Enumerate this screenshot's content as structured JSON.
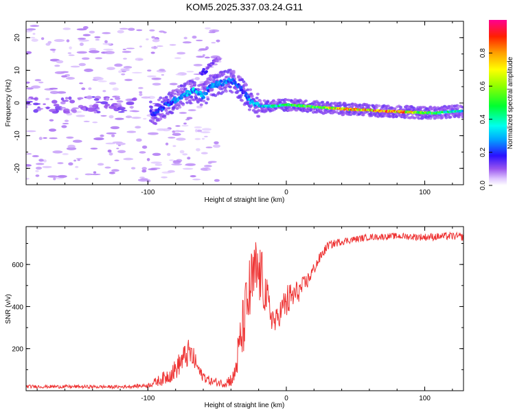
{
  "title": "KOM5.2025.337.03.24.G11",
  "chart_data": [
    {
      "type": "heatmap",
      "name": "spectrogram",
      "xlabel": "Height of straight line (km)",
      "ylabel": "Frequency (Hz)",
      "xlim": [
        -188,
        128
      ],
      "ylim": [
        -25,
        25
      ],
      "xticks": [
        -100,
        0,
        100
      ],
      "xtick_labels": [
        "-100",
        "0",
        "100"
      ],
      "yticks": [
        -20,
        -10,
        0,
        10,
        20
      ],
      "ytick_labels": [
        "-20",
        "-10",
        "0",
        "10",
        "20"
      ],
      "colorbar": {
        "label": "Normalized spectral amplitude",
        "range": [
          0,
          1
        ],
        "ticks": [
          0.0,
          0.2,
          0.4,
          0.6,
          0.8
        ],
        "tick_labels": [
          "0.0",
          "0.2",
          "0.4",
          "0.6",
          "0.8"
        ]
      },
      "ridge": {
        "x": [
          -95,
          -88,
          -80,
          -72,
          -66,
          -60,
          -55,
          -48,
          -40,
          -32,
          -25,
          -18,
          -10,
          0,
          10,
          20,
          30,
          40,
          50,
          60,
          70,
          80,
          90,
          100,
          110,
          118,
          128
        ],
        "freq": [
          -3,
          -1,
          1,
          3,
          4,
          2,
          5,
          6,
          7,
          4,
          0,
          -1,
          -1,
          -0.5,
          -0.8,
          -1.2,
          -1.5,
          -1.8,
          -2,
          -2.2,
          -2.5,
          -2.6,
          -2.8,
          -3,
          -3,
          -2.6,
          -2.5
        ],
        "amplitude": [
          0.2,
          0.25,
          0.3,
          0.32,
          0.35,
          0.33,
          0.3,
          0.28,
          0.3,
          0.2,
          0.35,
          0.4,
          0.45,
          0.5,
          0.55,
          0.6,
          0.75,
          0.8,
          0.85,
          0.9,
          0.95,
          0.9,
          0.8,
          0.6,
          0.5,
          0.45,
          0.4
        ]
      },
      "upper_branch": {
        "x": [
          -62,
          -58,
          -54,
          -50,
          -48
        ],
        "freq": [
          9,
          10,
          12,
          13,
          14
        ],
        "amplitude": [
          0.15,
          0.15,
          0.12,
          0.1,
          0.08
        ]
      }
    },
    {
      "type": "line",
      "name": "snr",
      "xlabel": "Height of straight line (km)",
      "ylabel": "SNR (v/v)",
      "xlim": [
        -188,
        128
      ],
      "ylim": [
        0,
        780
      ],
      "xticks": [
        -100,
        0,
        100
      ],
      "xtick_labels": [
        "-100",
        "0",
        "100"
      ],
      "yticks": [
        200,
        400,
        600
      ],
      "ytick_labels": [
        "200",
        "400",
        "600"
      ],
      "color": "#ee3333",
      "envelope": {
        "x": [
          -188,
          -120,
          -100,
          -95,
          -88,
          -80,
          -75,
          -70,
          -66,
          -62,
          -55,
          -45,
          -38,
          -34,
          -30,
          -26,
          -22,
          -18,
          -12,
          -8,
          -4,
          0,
          5,
          10,
          15,
          20,
          25,
          30,
          40,
          50,
          60,
          80,
          100,
          120,
          128
        ],
        "y": [
          20,
          18,
          25,
          40,
          60,
          100,
          150,
          180,
          140,
          80,
          45,
          35,
          60,
          200,
          350,
          480,
          560,
          540,
          380,
          320,
          380,
          420,
          450,
          480,
          520,
          580,
          640,
          690,
          710,
          720,
          730,
          735,
          730,
          735,
          730
        ],
        "noise": [
          8,
          8,
          10,
          20,
          35,
          50,
          60,
          70,
          50,
          30,
          20,
          20,
          40,
          120,
          160,
          180,
          170,
          140,
          80,
          60,
          60,
          90,
          70,
          50,
          40,
          30,
          25,
          20,
          18,
          16,
          15,
          15,
          18,
          18,
          18
        ]
      }
    }
  ]
}
